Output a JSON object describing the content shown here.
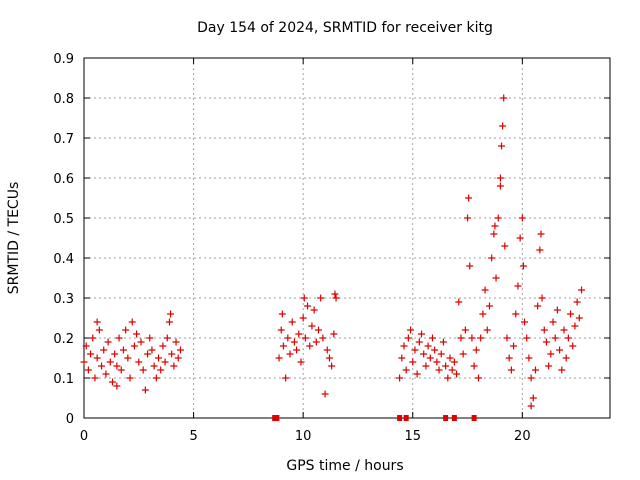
{
  "chart_data": {
    "type": "scatter",
    "title": "Day 154 of 2024, SRMTID for receiver kitg",
    "xlabel": "GPS time / hours",
    "ylabel": "SRMTID / TECUs",
    "xlim": [
      0,
      24
    ],
    "ylim": [
      0,
      0.9
    ],
    "xticks": [
      0,
      5,
      10,
      15,
      20
    ],
    "yticks": [
      0,
      0.1,
      0.2,
      0.3,
      0.4,
      0.5,
      0.6,
      0.7,
      0.8,
      0.9
    ],
    "xtick_labels": [
      "0",
      "5",
      "10",
      "15",
      "20"
    ],
    "ytick_labels": [
      "0",
      "0.1",
      "0.2",
      "0.3",
      "0.4",
      "0.5",
      "0.6",
      "0.7",
      "0.8",
      "0.9"
    ],
    "grid": true,
    "marker": "+",
    "color": "#e00000",
    "zero_markers_x": [
      8.7,
      8.8,
      14.4,
      14.7,
      16.5,
      16.9,
      17.8
    ],
    "points": [
      [
        0.0,
        0.14
      ],
      [
        0.1,
        0.18
      ],
      [
        0.2,
        0.12
      ],
      [
        0.3,
        0.16
      ],
      [
        0.4,
        0.2
      ],
      [
        0.5,
        0.1
      ],
      [
        0.6,
        0.15
      ],
      [
        0.7,
        0.22
      ],
      [
        0.8,
        0.13
      ],
      [
        0.9,
        0.17
      ],
      [
        1.0,
        0.11
      ],
      [
        1.1,
        0.19
      ],
      [
        1.2,
        0.14
      ],
      [
        1.3,
        0.09
      ],
      [
        1.4,
        0.16
      ],
      [
        1.5,
        0.13
      ],
      [
        1.6,
        0.2
      ],
      [
        1.7,
        0.12
      ],
      [
        1.8,
        0.17
      ],
      [
        1.9,
        0.22
      ],
      [
        2.0,
        0.15
      ],
      [
        2.1,
        0.1
      ],
      [
        2.2,
        0.24
      ],
      [
        2.3,
        0.18
      ],
      [
        2.4,
        0.21
      ],
      [
        2.5,
        0.14
      ],
      [
        2.6,
        0.19
      ],
      [
        2.7,
        0.12
      ],
      [
        2.8,
        0.07
      ],
      [
        2.9,
        0.16
      ],
      [
        3.0,
        0.2
      ],
      [
        3.1,
        0.17
      ],
      [
        3.2,
        0.13
      ],
      [
        3.3,
        0.1
      ],
      [
        3.4,
        0.15
      ],
      [
        3.5,
        0.12
      ],
      [
        3.6,
        0.18
      ],
      [
        3.7,
        0.14
      ],
      [
        3.8,
        0.2
      ],
      [
        3.9,
        0.24
      ],
      [
        4.0,
        0.16
      ],
      [
        4.1,
        0.13
      ],
      [
        4.2,
        0.19
      ],
      [
        4.3,
        0.15
      ],
      [
        4.4,
        0.17
      ],
      [
        3.95,
        0.26
      ],
      [
        0.6,
        0.24
      ],
      [
        1.5,
        0.08
      ],
      [
        8.9,
        0.15
      ],
      [
        9.0,
        0.22
      ],
      [
        9.1,
        0.18
      ],
      [
        9.2,
        0.1
      ],
      [
        9.3,
        0.2
      ],
      [
        9.4,
        0.16
      ],
      [
        9.5,
        0.24
      ],
      [
        9.6,
        0.19
      ],
      [
        9.7,
        0.17
      ],
      [
        9.8,
        0.21
      ],
      [
        9.9,
        0.14
      ],
      [
        10.0,
        0.25
      ],
      [
        10.1,
        0.2
      ],
      [
        10.2,
        0.28
      ],
      [
        10.3,
        0.18
      ],
      [
        10.4,
        0.23
      ],
      [
        10.5,
        0.27
      ],
      [
        10.6,
        0.19
      ],
      [
        10.7,
        0.22
      ],
      [
        10.8,
        0.3
      ],
      [
        10.9,
        0.2
      ],
      [
        11.0,
        0.06
      ],
      [
        11.1,
        0.17
      ],
      [
        11.2,
        0.15
      ],
      [
        11.3,
        0.13
      ],
      [
        11.4,
        0.21
      ],
      [
        11.5,
        0.3
      ],
      [
        9.05,
        0.26
      ],
      [
        10.05,
        0.3
      ],
      [
        11.45,
        0.31
      ],
      [
        14.4,
        0.1
      ],
      [
        14.5,
        0.15
      ],
      [
        14.6,
        0.18
      ],
      [
        14.7,
        0.12
      ],
      [
        14.8,
        0.2
      ],
      [
        14.9,
        0.22
      ],
      [
        15.0,
        0.14
      ],
      [
        15.1,
        0.17
      ],
      [
        15.2,
        0.11
      ],
      [
        15.3,
        0.19
      ],
      [
        15.4,
        0.21
      ],
      [
        15.5,
        0.16
      ],
      [
        15.6,
        0.13
      ],
      [
        15.7,
        0.18
      ],
      [
        15.8,
        0.15
      ],
      [
        15.9,
        0.2
      ],
      [
        16.0,
        0.17
      ],
      [
        16.1,
        0.14
      ],
      [
        16.2,
        0.12
      ],
      [
        16.3,
        0.16
      ],
      [
        16.4,
        0.19
      ],
      [
        16.5,
        0.13
      ],
      [
        16.6,
        0.1
      ],
      [
        16.7,
        0.15
      ],
      [
        16.8,
        0.12
      ],
      [
        16.9,
        0.14
      ],
      [
        17.0,
        0.11
      ],
      [
        17.1,
        0.29
      ],
      [
        17.2,
        0.2
      ],
      [
        17.3,
        0.16
      ],
      [
        17.4,
        0.22
      ],
      [
        17.5,
        0.5
      ],
      [
        17.55,
        0.55
      ],
      [
        17.6,
        0.38
      ],
      [
        17.7,
        0.2
      ],
      [
        17.8,
        0.13
      ],
      [
        17.9,
        0.17
      ],
      [
        18.0,
        0.1
      ],
      [
        18.1,
        0.2
      ],
      [
        18.2,
        0.26
      ],
      [
        18.3,
        0.32
      ],
      [
        18.4,
        0.22
      ],
      [
        18.5,
        0.28
      ],
      [
        18.6,
        0.4
      ],
      [
        18.7,
        0.46
      ],
      [
        18.8,
        0.35
      ],
      [
        18.9,
        0.5
      ],
      [
        19.0,
        0.6
      ],
      [
        19.05,
        0.68
      ],
      [
        19.1,
        0.73
      ],
      [
        19.15,
        0.8
      ],
      [
        19.2,
        0.43
      ],
      [
        19.3,
        0.2
      ],
      [
        19.4,
        0.15
      ],
      [
        19.5,
        0.12
      ],
      [
        19.6,
        0.18
      ],
      [
        19.7,
        0.26
      ],
      [
        19.8,
        0.33
      ],
      [
        19.9,
        0.45
      ],
      [
        20.0,
        0.5
      ],
      [
        20.05,
        0.38
      ],
      [
        20.1,
        0.24
      ],
      [
        20.2,
        0.2
      ],
      [
        20.3,
        0.15
      ],
      [
        20.4,
        0.1
      ],
      [
        20.5,
        0.05
      ],
      [
        20.6,
        0.12
      ],
      [
        20.7,
        0.28
      ],
      [
        20.8,
        0.42
      ],
      [
        20.9,
        0.3
      ],
      [
        21.0,
        0.22
      ],
      [
        21.1,
        0.19
      ],
      [
        21.2,
        0.13
      ],
      [
        21.3,
        0.16
      ],
      [
        21.4,
        0.24
      ],
      [
        21.5,
        0.2
      ],
      [
        21.6,
        0.27
      ],
      [
        21.7,
        0.17
      ],
      [
        21.8,
        0.12
      ],
      [
        21.9,
        0.22
      ],
      [
        22.0,
        0.15
      ],
      [
        22.1,
        0.2
      ],
      [
        22.2,
        0.26
      ],
      [
        22.3,
        0.18
      ],
      [
        22.4,
        0.23
      ],
      [
        22.5,
        0.29
      ],
      [
        22.6,
        0.25
      ],
      [
        22.7,
        0.32
      ],
      [
        20.4,
        0.03
      ],
      [
        19.0,
        0.58
      ],
      [
        18.75,
        0.48
      ],
      [
        20.85,
        0.46
      ]
    ]
  }
}
